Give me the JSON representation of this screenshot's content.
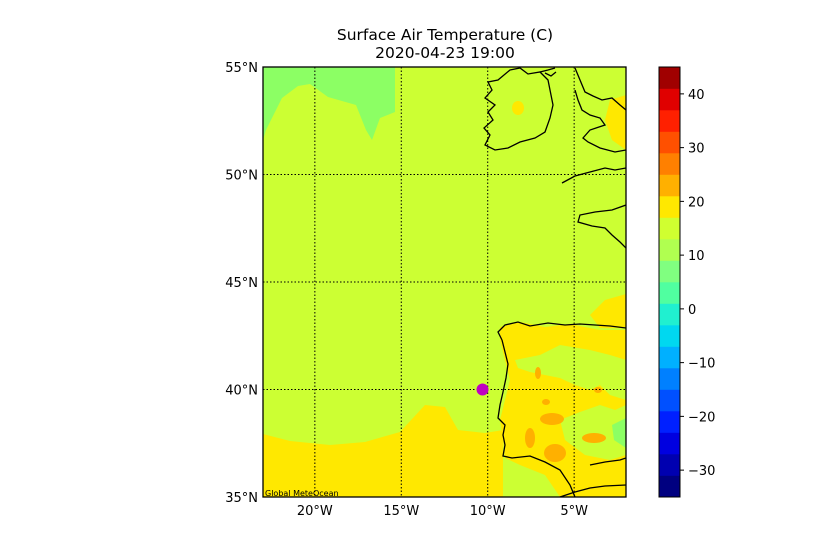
{
  "title": "Surface Air Temperature (C)",
  "subtitle": "2020-04-23 19:00",
  "map": {
    "lon_range": [
      -23,
      -2
    ],
    "lat_range": [
      35,
      55
    ],
    "lat_ticks": [
      {
        "value": 55,
        "label": "55°N"
      },
      {
        "value": 50,
        "label": "50°N"
      },
      {
        "value": 45,
        "label": "45°N"
      },
      {
        "value": 40,
        "label": "40°N"
      },
      {
        "value": 35,
        "label": "35°N"
      }
    ],
    "lon_ticks": [
      {
        "value": -20,
        "label": "20°W"
      },
      {
        "value": -15,
        "label": "15°W"
      },
      {
        "value": -10,
        "label": "10°W"
      },
      {
        "value": -5,
        "label": "5°W"
      }
    ],
    "gridlines": "dotted",
    "marker": {
      "lon": -10.3,
      "lat": 40.0,
      "color": "#c000c0"
    },
    "attribution": "Global MeteOcean"
  },
  "colorbar": {
    "range": [
      -35,
      45
    ],
    "step": 5,
    "ticks": [
      40,
      30,
      20,
      10,
      0,
      -10,
      -20,
      -30
    ],
    "colors": [
      "#000080",
      "#0000b0",
      "#0000e0",
      "#0020ff",
      "#0050ff",
      "#0080ff",
      "#00b0ff",
      "#00d8f0",
      "#20f0d0",
      "#50ffa0",
      "#80ff80",
      "#b0ff50",
      "#d0ff30",
      "#ffe800",
      "#ffb000",
      "#ff8000",
      "#ff5000",
      "#ff2000",
      "#e00000",
      "#a00000"
    ]
  },
  "palette": {
    "band_5_10": "#8cff64",
    "band_10_15": "#ccff33",
    "band_15_20": "#ffe800",
    "band_20_25": "#ffb000",
    "coast": "#000000"
  }
}
